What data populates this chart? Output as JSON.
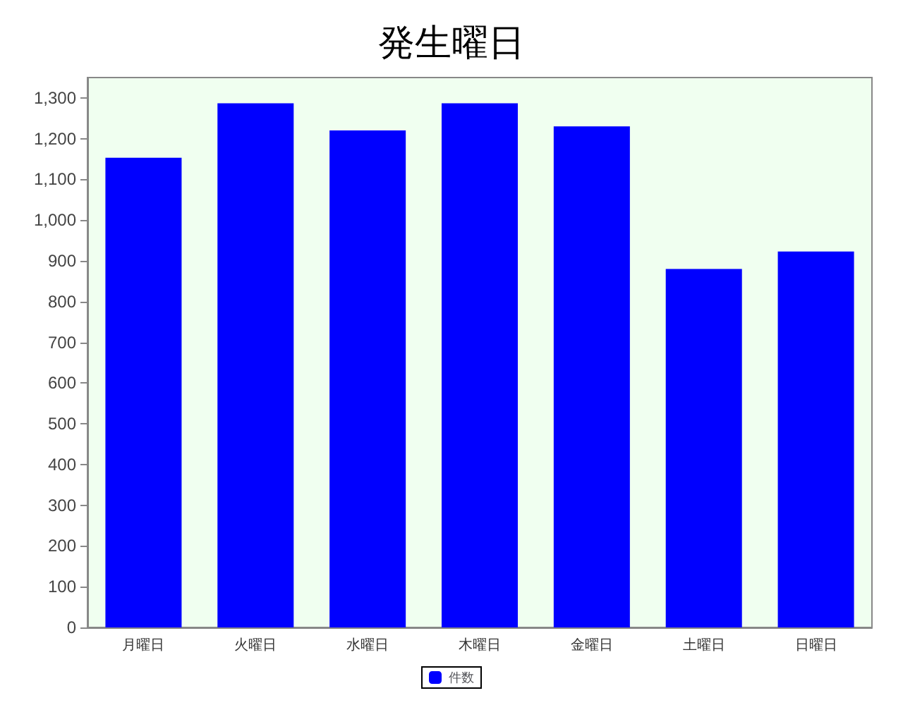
{
  "chart_data": {
    "type": "bar",
    "title": "発生曜日",
    "categories": [
      "月曜日",
      "火曜日",
      "水曜日",
      "木曜日",
      "金曜日",
      "土曜日",
      "日曜日"
    ],
    "series": [
      {
        "name": "件数",
        "color": "#0000ff",
        "values": [
          1153,
          1287,
          1220,
          1287,
          1230,
          880,
          923
        ]
      }
    ],
    "ylim": [
      0,
      1350
    ],
    "yticks": [
      0,
      100,
      200,
      300,
      400,
      500,
      600,
      700,
      800,
      900,
      {
        "value": 1000,
        "label": "1,000"
      },
      {
        "value": 1100,
        "label": "1,100"
      },
      {
        "value": 1200,
        "label": "1,200"
      },
      {
        "value": 1300,
        "label": "1,300"
      }
    ],
    "grid": false,
    "legend": "bottom"
  }
}
